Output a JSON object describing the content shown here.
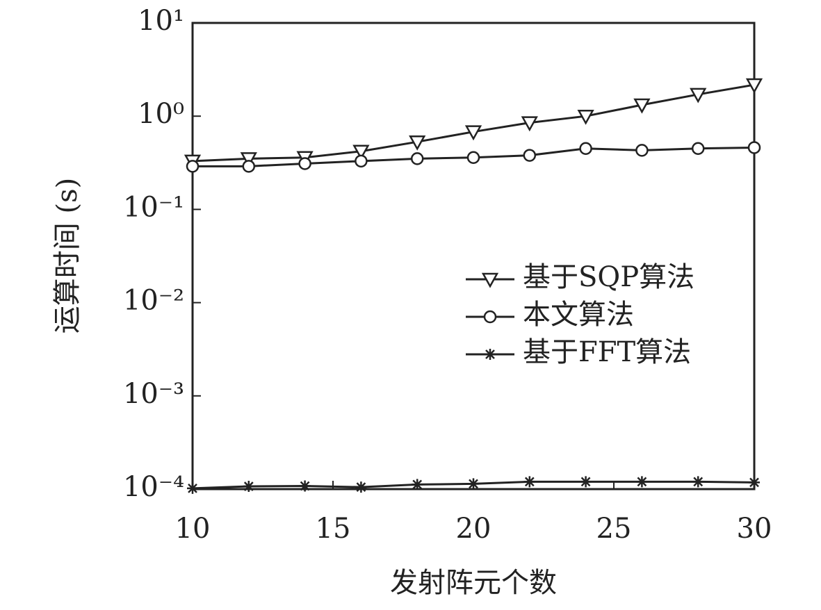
{
  "chart_data": {
    "type": "line",
    "log_y": true,
    "x_label": "发射阵元个数",
    "y_label": "运算时间 (s)",
    "x": [
      10,
      12,
      14,
      16,
      18,
      20,
      22,
      24,
      26,
      28,
      30
    ],
    "series": [
      {
        "name": "基于SQP算法",
        "color": "#222222",
        "marker": "triangle-down",
        "values": [
          0.33,
          0.35,
          0.36,
          0.42,
          0.53,
          0.68,
          0.85,
          1.0,
          1.32,
          1.71,
          2.17
        ]
      },
      {
        "name": "本文算法",
        "color": "#222222",
        "marker": "circle",
        "values": [
          0.29,
          0.29,
          0.31,
          0.33,
          0.35,
          0.36,
          0.38,
          0.45,
          0.43,
          0.45,
          0.46
        ]
      },
      {
        "name": "基于FFT算法",
        "color": "#222222",
        "marker": "asterisk",
        "values": [
          0.000102,
          0.000107,
          0.000108,
          0.000105,
          0.000112,
          0.000114,
          0.00012,
          0.00012,
          0.00012,
          0.00012,
          0.000118
        ]
      }
    ],
    "xlim": [
      10,
      30
    ],
    "xticks": [
      10,
      15,
      20,
      25,
      30
    ],
    "ylim": [
      0.0001,
      10
    ],
    "yticks": [
      {
        "value": 10,
        "label": "10¹"
      },
      {
        "value": 1,
        "label": "10⁰"
      },
      {
        "value": 0.1,
        "label": "10⁻¹"
      },
      {
        "value": 0.01,
        "label": "10⁻²"
      },
      {
        "value": 0.001,
        "label": "10⁻³"
      },
      {
        "value": 0.0001,
        "label": "10⁻⁴"
      }
    ],
    "legend": "right"
  }
}
